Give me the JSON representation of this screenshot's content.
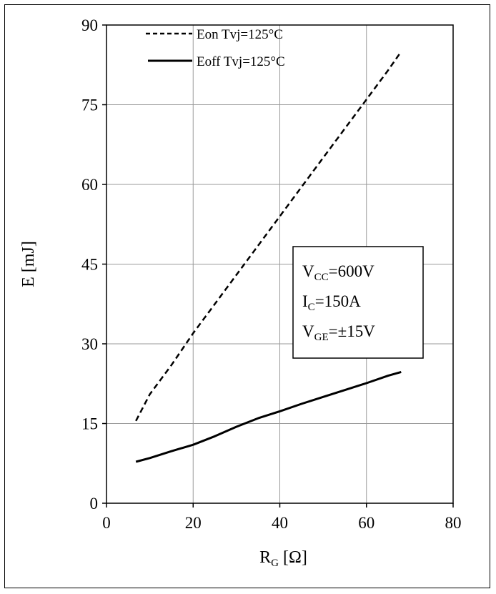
{
  "chart_data": {
    "type": "line",
    "title": "",
    "xlabel": "R",
    "xlabel_sub": "G",
    "xlabel_unit": " [Ω]",
    "ylabel": "E [mJ]",
    "xlim": [
      0,
      80
    ],
    "ylim": [
      0,
      90
    ],
    "xticks": [
      0,
      20,
      40,
      60,
      80
    ],
    "yticks": [
      0,
      15,
      30,
      45,
      60,
      75,
      90
    ],
    "grid": true,
    "legend_position": "top-left",
    "series": [
      {
        "name": "Eon Tvj=125°C",
        "style": "dashed",
        "color": "#000000",
        "x": [
          6.8,
          10,
          15,
          20,
          25,
          30,
          35,
          40,
          45,
          50,
          55,
          60,
          65,
          68
        ],
        "y": [
          15.5,
          20.5,
          26,
          32,
          37.5,
          43,
          48.5,
          54,
          59.5,
          65,
          70.5,
          76,
          81.5,
          85
        ]
      },
      {
        "name": "Eoff Tvj=125°C",
        "style": "solid",
        "color": "#000000",
        "x": [
          6.8,
          10,
          15,
          20,
          25,
          30,
          35,
          40,
          45,
          50,
          55,
          60,
          65,
          68
        ],
        "y": [
          7.8,
          8.5,
          9.8,
          11,
          12.6,
          14.4,
          16,
          17.3,
          18.7,
          20,
          21.3,
          22.6,
          24,
          24.7
        ]
      }
    ],
    "annotation": {
      "lines": [
        {
          "main": "V",
          "sub": "CC",
          "rest": "=600V"
        },
        {
          "main": "I",
          "sub": "C",
          "rest": "=150A"
        },
        {
          "main": "V",
          "sub": "GE",
          "rest": "=±15V"
        }
      ]
    }
  }
}
